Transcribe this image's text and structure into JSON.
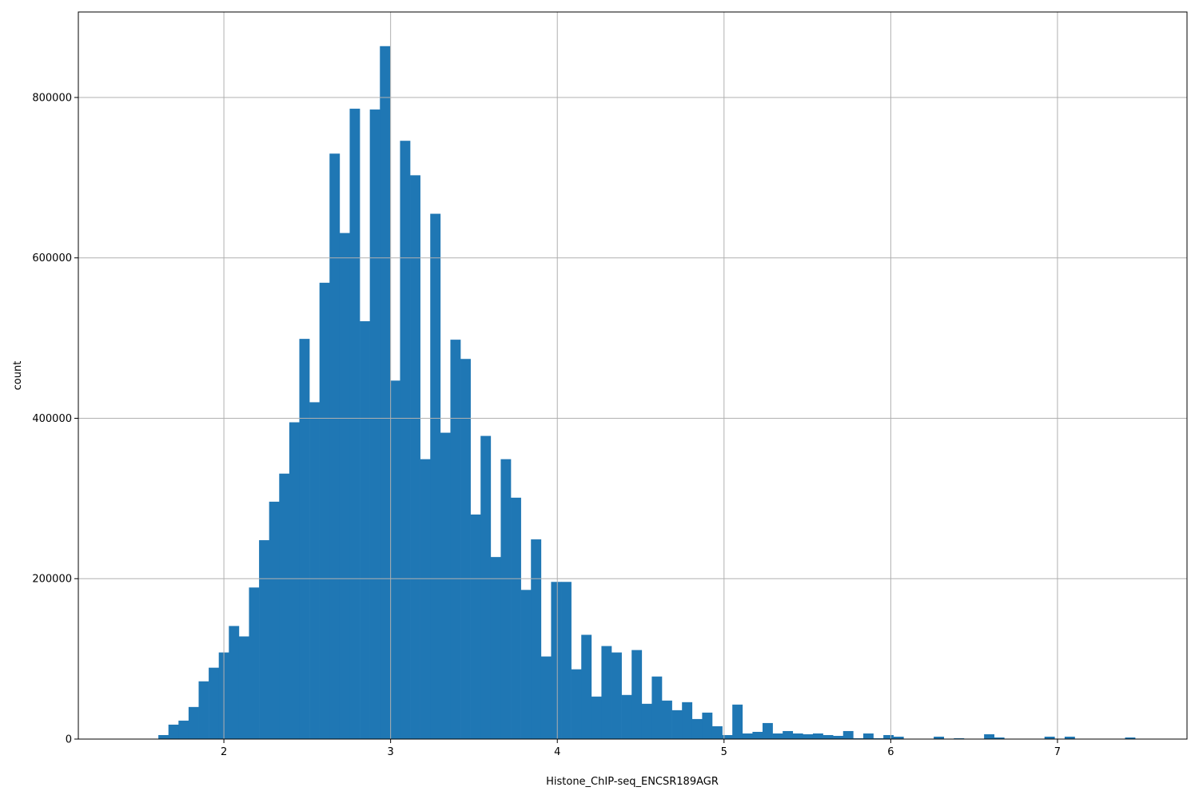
{
  "chart_data": {
    "type": "bar",
    "subtype": "histogram",
    "title": "",
    "xlabel": "Histone_ChIP-seq_ENCSR189AGR",
    "ylabel": "count",
    "xlim": [
      1.127,
      7.777
    ],
    "ylim": [
      0,
      906600
    ],
    "grid": true,
    "bar_color": "#1f77b4",
    "grid_color": "#b0b0b0",
    "bin_start": 1.607,
    "bin_width": 0.0604,
    "x_ticks": [
      2,
      3,
      4,
      5,
      6,
      7
    ],
    "x_tick_labels": [
      "2",
      "3",
      "4",
      "5",
      "6",
      "7"
    ],
    "y_ticks": [
      0,
      200000,
      400000,
      600000,
      800000
    ],
    "y_tick_labels": [
      "0",
      "200000",
      "400000",
      "600000",
      "800000"
    ],
    "values": [
      5000,
      18000,
      23000,
      40000,
      72000,
      89000,
      108000,
      141000,
      128000,
      189000,
      248000,
      296000,
      331000,
      395000,
      499000,
      420000,
      569000,
      730000,
      631000,
      786000,
      521000,
      785000,
      864000,
      447000,
      746000,
      703000,
      349000,
      655000,
      382000,
      498000,
      474000,
      280000,
      378000,
      227000,
      349000,
      301000,
      186000,
      249000,
      103000,
      196000,
      196000,
      87000,
      130000,
      53000,
      116000,
      108000,
      55000,
      111000,
      44000,
      78000,
      48000,
      36000,
      46000,
      25000,
      33000,
      16000,
      5000,
      43000,
      7000,
      9000,
      20000,
      7000,
      10000,
      7000,
      6000,
      7000,
      5000,
      4000,
      10000,
      1000,
      7000,
      1000,
      5000,
      3000,
      0,
      0,
      0,
      3000,
      0,
      1000,
      0,
      0,
      6000,
      2000,
      0,
      0,
      0,
      0,
      3000,
      0,
      3000,
      0,
      0,
      0,
      0,
      0,
      2000
    ]
  }
}
